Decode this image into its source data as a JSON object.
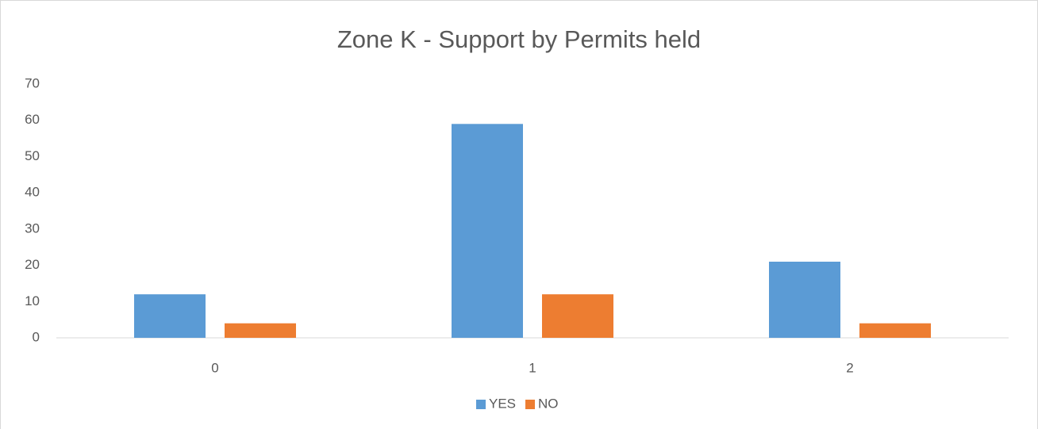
{
  "chart_data": {
    "type": "bar",
    "title": "Zone K - Support by Permits held",
    "categories": [
      "0",
      "1",
      "2"
    ],
    "series": [
      {
        "name": "YES",
        "color": "#5b9bd5",
        "values": [
          12,
          59,
          21
        ]
      },
      {
        "name": "NO",
        "color": "#ed7d31",
        "values": [
          4,
          12,
          4
        ]
      }
    ],
    "ylim": [
      0,
      70
    ],
    "yticks": [
      0,
      10,
      20,
      30,
      40,
      50,
      60,
      70
    ],
    "grid": false,
    "legend": "bottom"
  }
}
